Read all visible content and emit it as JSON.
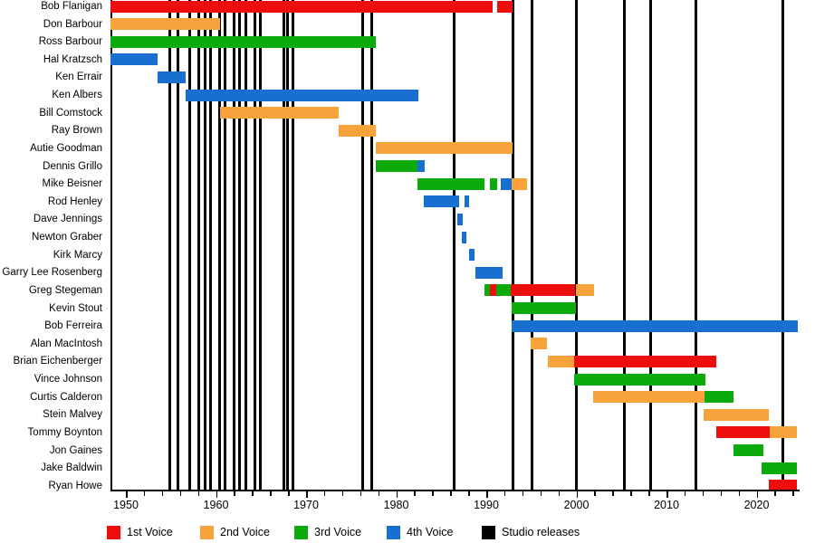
{
  "chart_data": {
    "type": "bar",
    "subtype": "gantt-membership-timeline",
    "title": "",
    "xlabel": "",
    "ylabel": "",
    "x_axis": {
      "range": [
        1948.3,
        2024.6
      ],
      "major_ticks": [
        1950,
        1960,
        1970,
        1980,
        1990,
        2000,
        2010,
        2020
      ],
      "major_tick_labels": [
        "1950",
        "1960",
        "1970",
        "1980",
        "1990",
        "2000",
        "2010",
        "2020"
      ],
      "minor_tick_step_years": 2,
      "grid": false
    },
    "voice_colors": {
      "1st": "#ee0d0d",
      "2nd": "#f8a23c",
      "3rd": "#0cab0c",
      "4th": "#176fd0",
      "release": "#000000"
    },
    "legend": {
      "position": "bottom",
      "items": [
        {
          "label": "1st Voice",
          "color": "#ee0d0d"
        },
        {
          "label": "2nd Voice",
          "color": "#f8a23c"
        },
        {
          "label": "3rd Voice",
          "color": "#0cab0c"
        },
        {
          "label": "4th Voice",
          "color": "#176fd0"
        },
        {
          "label": "Studio releases",
          "color": "#000000"
        }
      ]
    },
    "members": [
      {
        "name": "Bob Flanigan",
        "segments": [
          {
            "voice": "1st",
            "from": 1948.3,
            "to": 1990.7
          },
          {
            "voice": "1st",
            "from": 1991.2,
            "to": 1992.9
          }
        ]
      },
      {
        "name": "Don Barbour",
        "segments": [
          {
            "voice": "2nd",
            "from": 1948.3,
            "to": 1960.5
          }
        ]
      },
      {
        "name": "Ross Barbour",
        "segments": [
          {
            "voice": "3rd",
            "from": 1948.3,
            "to": 1977.7
          }
        ]
      },
      {
        "name": "Hal Kratzsch",
        "segments": [
          {
            "voice": "4th",
            "from": 1948.3,
            "to": 1953.5
          }
        ]
      },
      {
        "name": "Ken Errair",
        "segments": [
          {
            "voice": "4th",
            "from": 1953.5,
            "to": 1956.6
          }
        ]
      },
      {
        "name": "Ken Albers",
        "segments": [
          {
            "voice": "4th",
            "from": 1956.6,
            "to": 1982.5
          }
        ]
      },
      {
        "name": "Bill Comstock",
        "segments": [
          {
            "voice": "2nd",
            "from": 1960.5,
            "to": 1973.6
          }
        ]
      },
      {
        "name": "Ray Brown",
        "segments": [
          {
            "voice": "2nd",
            "from": 1973.6,
            "to": 1977.7
          }
        ]
      },
      {
        "name": "Autie Goodman",
        "segments": [
          {
            "voice": "2nd",
            "from": 1977.7,
            "to": 1992.9
          }
        ]
      },
      {
        "name": "Dennis Grillo",
        "segments": [
          {
            "voice": "3rd",
            "from": 1977.7,
            "to": 1982.4
          },
          {
            "voice": "4th",
            "from": 1982.4,
            "to": 1983.2
          }
        ]
      },
      {
        "name": "Mike Beisner",
        "segments": [
          {
            "voice": "3rd",
            "from": 1982.4,
            "to": 1989.8
          },
          {
            "voice": "3rd",
            "from": 1990.4,
            "to": 1991.2
          },
          {
            "voice": "4th",
            "from": 1991.6,
            "to": 1992.8
          },
          {
            "voice": "2nd",
            "from": 1992.8,
            "to": 1994.5
          }
        ]
      },
      {
        "name": "Rod Henley",
        "segments": [
          {
            "voice": "4th",
            "from": 1983.1,
            "to": 1987.0
          },
          {
            "voice": "4th",
            "from": 1987.6,
            "to": 1988.1
          }
        ]
      },
      {
        "name": "Dave Jennings",
        "segments": [
          {
            "voice": "4th",
            "from": 1986.8,
            "to": 1987.4
          }
        ]
      },
      {
        "name": "Newton Graber",
        "segments": [
          {
            "voice": "4th",
            "from": 1987.3,
            "to": 1987.8
          }
        ]
      },
      {
        "name": "Kirk Marcy",
        "segments": [
          {
            "voice": "4th",
            "from": 1988.1,
            "to": 1988.7
          }
        ]
      },
      {
        "name": "Garry Lee Rosenberg",
        "segments": [
          {
            "voice": "4th",
            "from": 1988.8,
            "to": 1991.8
          }
        ]
      },
      {
        "name": "Greg Stegeman",
        "segments": [
          {
            "voice": "3rd",
            "from": 1989.8,
            "to": 1990.4
          },
          {
            "voice": "1st",
            "from": 1990.4,
            "to": 1991.1
          },
          {
            "voice": "3rd",
            "from": 1991.1,
            "to": 1992.7
          },
          {
            "voice": "1st",
            "from": 1992.7,
            "to": 1999.9
          },
          {
            "voice": "2nd",
            "from": 1999.9,
            "to": 2002.0
          }
        ]
      },
      {
        "name": "Kevin Stout",
        "segments": [
          {
            "voice": "3rd",
            "from": 1992.8,
            "to": 1999.9
          }
        ]
      },
      {
        "name": "Bob Ferreira",
        "segments": [
          {
            "voice": "4th",
            "from": 1992.8,
            "to": 2024.6
          }
        ]
      },
      {
        "name": "Alan MacIntosh",
        "segments": [
          {
            "voice": "2nd",
            "from": 1994.9,
            "to": 1996.7
          }
        ]
      },
      {
        "name": "Brian Eichenberger",
        "segments": [
          {
            "voice": "2nd",
            "from": 1996.8,
            "to": 1999.7
          },
          {
            "voice": "1st",
            "from": 1999.7,
            "to": 2015.5
          }
        ]
      },
      {
        "name": "Vince Johnson",
        "segments": [
          {
            "voice": "3rd",
            "from": 1999.7,
            "to": 2014.3
          }
        ]
      },
      {
        "name": "Curtis Calderon",
        "segments": [
          {
            "voice": "2nd",
            "from": 2001.9,
            "to": 2014.2
          },
          {
            "voice": "3rd",
            "from": 2014.2,
            "to": 2017.4
          }
        ]
      },
      {
        "name": "Stein Malvey",
        "segments": [
          {
            "voice": "2nd",
            "from": 2014.1,
            "to": 2021.4
          }
        ]
      },
      {
        "name": "Tommy Boynton",
        "segments": [
          {
            "voice": "1st",
            "from": 2015.5,
            "to": 2021.5
          },
          {
            "voice": "2nd",
            "from": 2021.5,
            "to": 2024.5
          }
        ]
      },
      {
        "name": "Jon Gaines",
        "segments": [
          {
            "voice": "3rd",
            "from": 2017.4,
            "to": 2020.8
          }
        ]
      },
      {
        "name": "Jake Baldwin",
        "segments": [
          {
            "voice": "3rd",
            "from": 2020.6,
            "to": 2024.5
          }
        ]
      },
      {
        "name": "Ryan Howe",
        "segments": [
          {
            "voice": "1st",
            "from": 2021.4,
            "to": 2024.5
          }
        ]
      }
    ],
    "studio_releases_years": [
      1954.9,
      1955.8,
      1957.1,
      1958.1,
      1958.8,
      1959.4,
      1960.4,
      1961.0,
      1962.0,
      1962.6,
      1963.3,
      1964.3,
      1964.9,
      1967.5,
      1967.9,
      1968.5,
      1976.3,
      1977.3,
      1986.4,
      1993.0,
      1995.1,
      2000.0,
      2005.3,
      2008.2,
      2013.3,
      2022.9
    ]
  }
}
